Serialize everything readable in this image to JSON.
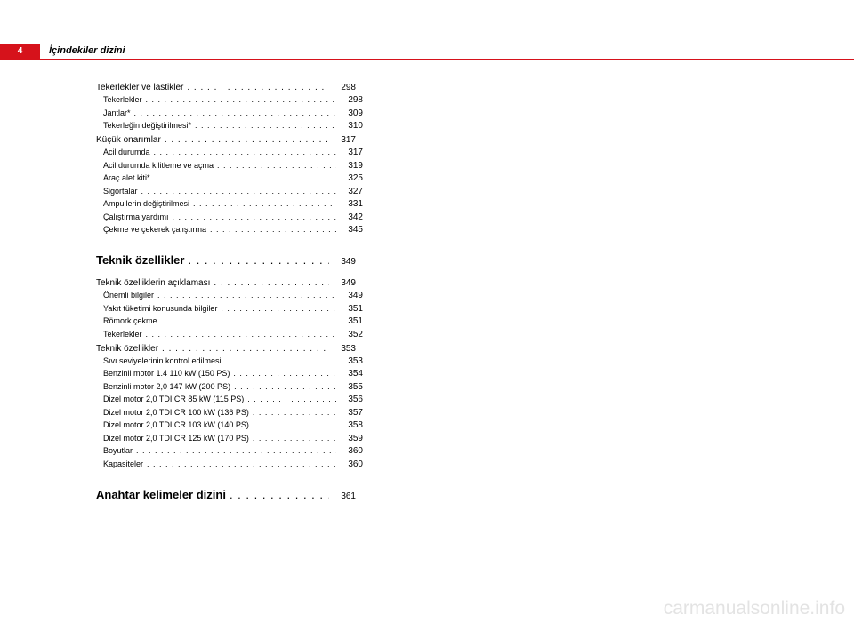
{
  "page_number": "4",
  "header": "İçindekiler dizini",
  "watermark": "carmanualsonline.info",
  "leader_fill": ". . . . . . . . . . . . . . . . . . . . . . . . . . . . . . . . . . . . . . . . . . . . . . . . . . . . . . . . . . . .",
  "colors": {
    "accent": "#d6121b",
    "text": "#000000",
    "watermark": "#e3e3e3",
    "background": "#ffffff"
  },
  "entries": [
    {
      "type": "sec",
      "label": "Tekerlekler ve lastikler",
      "page": "298"
    },
    {
      "type": "sub",
      "label": "Tekerlekler",
      "page": "298"
    },
    {
      "type": "sub",
      "label": "Jantlar*",
      "page": "309"
    },
    {
      "type": "sub",
      "label": "Tekerleğin değiştirilmesi*",
      "page": "310"
    },
    {
      "type": "sec",
      "label": "Küçük onarımlar",
      "page": "317",
      "gap_before": "sec"
    },
    {
      "type": "sub",
      "label": "Acil durumda",
      "page": "317"
    },
    {
      "type": "sub",
      "label": "Acil durumda kilitleme ve açma",
      "page": "319"
    },
    {
      "type": "sub",
      "label": "Araç alet kiti*",
      "page": "325"
    },
    {
      "type": "sub",
      "label": "Sigortalar",
      "page": "327"
    },
    {
      "type": "sub",
      "label": "Ampullerin değiştirilmesi",
      "page": "331"
    },
    {
      "type": "sub",
      "label": "Çalıştırma yardımı",
      "page": "342"
    },
    {
      "type": "sub",
      "label": "Çekme ve çekerek çalıştırma",
      "page": "345"
    },
    {
      "type": "h1",
      "label": "Teknik özellikler",
      "page": "349",
      "gap_before": "h1"
    },
    {
      "type": "sec",
      "label": "Teknik özelliklerin açıklaması",
      "page": "349",
      "gap_before": "after-h1"
    },
    {
      "type": "sub",
      "label": "Önemli bilgiler",
      "page": "349"
    },
    {
      "type": "sub",
      "label": "Yakıt tüketimi konusunda bilgiler",
      "page": "351"
    },
    {
      "type": "sub",
      "label": "Römork çekme",
      "page": "351"
    },
    {
      "type": "sub",
      "label": "Tekerlekler",
      "page": "352"
    },
    {
      "type": "sec",
      "label": "Teknik özellikler",
      "page": "353",
      "gap_before": "sec"
    },
    {
      "type": "sub",
      "label": "Sıvı seviyelerinin kontrol edilmesi",
      "page": "353"
    },
    {
      "type": "sub",
      "label": "Benzinli motor 1.4 110 kW (150 PS)",
      "page": "354"
    },
    {
      "type": "sub",
      "label": "Benzinli motor 2,0 147 kW (200 PS)",
      "page": "355"
    },
    {
      "type": "sub",
      "label": "Dizel motor 2,0 TDI CR 85 kW (115 PS)",
      "page": "356"
    },
    {
      "type": "sub",
      "label": "Dizel motor 2,0 TDI CR 100 kW (136 PS)",
      "page": "357"
    },
    {
      "type": "sub",
      "label": "Dizel motor 2,0 TDI CR 103 kW (140 PS)",
      "page": "358"
    },
    {
      "type": "sub",
      "label": "Dizel motor 2,0 TDI CR 125 kW (170 PS)",
      "page": "359"
    },
    {
      "type": "sub",
      "label": "Boyutlar",
      "page": "360"
    },
    {
      "type": "sub",
      "label": "Kapasiteler",
      "page": "360"
    },
    {
      "type": "h1",
      "label": "Anahtar kelimeler dizini",
      "page": "361",
      "gap_before": "h1"
    }
  ]
}
